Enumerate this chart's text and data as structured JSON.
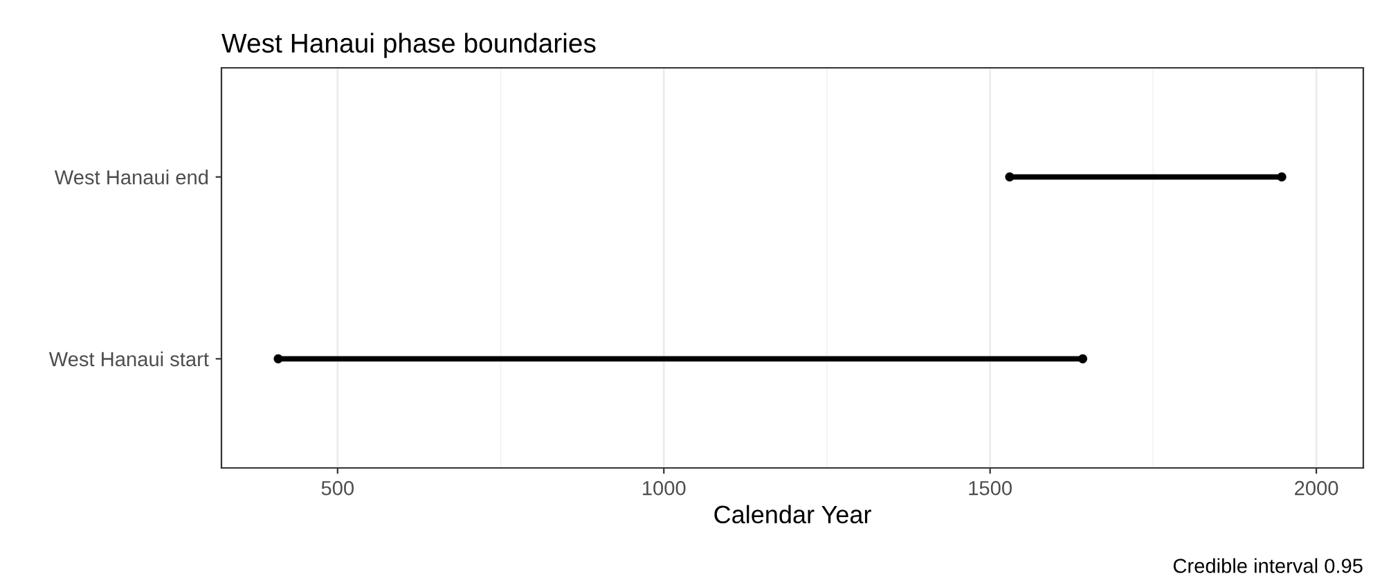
{
  "chart_data": {
    "type": "bar",
    "orientation": "horizontal",
    "title": "West Hanaui phase boundaries",
    "xlabel": "Calendar Year",
    "categories": [
      "West Hanaui end",
      "West Hanaui start"
    ],
    "series": [
      {
        "color": "#000000",
        "base": [
          1530,
          409
        ],
        "values": [
          417,
          1233
        ]
      },
      {
        "type": "scatter",
        "color": "#000000",
        "marker": "circle",
        "values": [
          1530,
          409
        ]
      },
      {
        "type": "scatter",
        "color": "#000000",
        "marker": "circle",
        "values": [
          1947,
          1642
        ]
      }
    ],
    "xlim": [
      322,
      2072
    ],
    "xticks": [
      500,
      1000,
      1500,
      2000
    ],
    "grid": "x",
    "annotations": [
      "Credible interval 0.95"
    ]
  }
}
